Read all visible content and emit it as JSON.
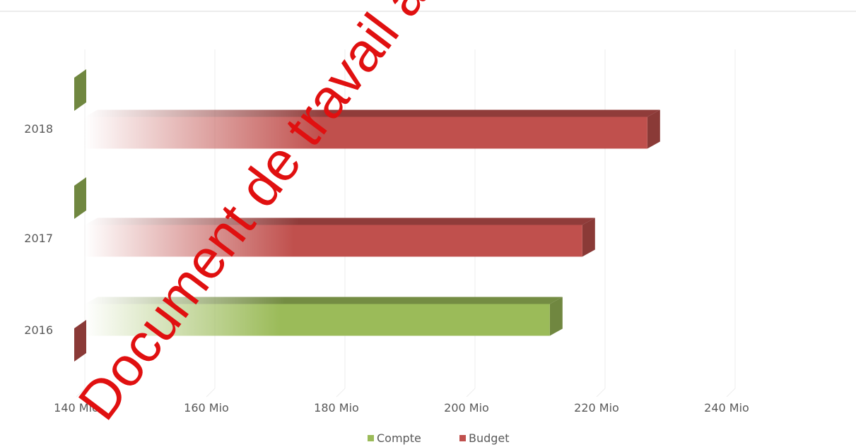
{
  "chart_data": {
    "type": "bar",
    "orientation": "horizontal",
    "three_d": true,
    "categories": [
      "2016",
      "2017",
      "2018"
    ],
    "series": [
      {
        "name": "Compte",
        "color": "#9bbb59",
        "values": [
          211.5,
          null,
          null
        ]
      },
      {
        "name": "Budget",
        "color": "#c0504d",
        "values": [
          null,
          216.5,
          226.5
        ]
      }
    ],
    "x_ticks": [
      {
        "value": 140,
        "label": "140 Mio"
      },
      {
        "value": 160,
        "label": "160 Mio"
      },
      {
        "value": 180,
        "label": "180 Mio"
      },
      {
        "value": 200,
        "label": "200 Mio"
      },
      {
        "value": 220,
        "label": "220 Mio"
      },
      {
        "value": 240,
        "label": "240 Mio"
      }
    ],
    "xlim": [
      140,
      260
    ],
    "grid": true,
    "legend_position": "bottom",
    "title": "",
    "xlabel": "",
    "ylabel": ""
  },
  "watermark": {
    "text": "Document de travail à l",
    "color": "#e01010"
  }
}
